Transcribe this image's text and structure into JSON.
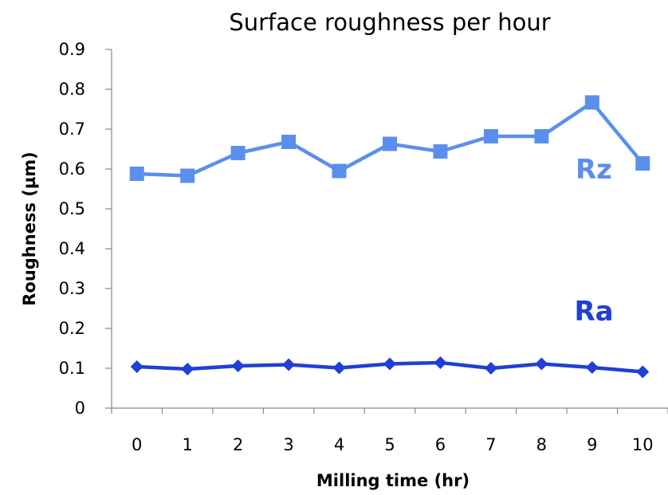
{
  "chart_data": {
    "type": "line",
    "title": "Surface roughness per hour",
    "xlabel": "Milling time (hr)",
    "ylabel": "Roughness (µm)",
    "categories": [
      "0",
      "1",
      "2",
      "3",
      "4",
      "5",
      "6",
      "7",
      "8",
      "9",
      "10"
    ],
    "ylim": [
      0,
      0.9
    ],
    "yticks": [
      "0",
      "0.1",
      "0.2",
      "0.3",
      "0.4",
      "0.5",
      "0.6",
      "0.7",
      "0.8",
      "0.9"
    ],
    "grid": false,
    "series": [
      {
        "name": "Rz",
        "marker": "square",
        "color": "#5B8FEE",
        "values": [
          0.588,
          0.583,
          0.64,
          0.668,
          0.595,
          0.663,
          0.644,
          0.682,
          0.682,
          0.767,
          0.614
        ]
      },
      {
        "name": "Ra",
        "marker": "diamond",
        "color": "#1F3FD6",
        "values": [
          0.104,
          0.098,
          0.106,
          0.109,
          0.101,
          0.111,
          0.114,
          0.1,
          0.111,
          0.102,
          0.091
        ]
      }
    ]
  }
}
